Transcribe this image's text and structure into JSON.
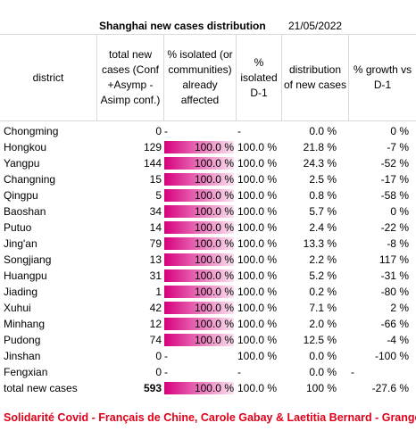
{
  "title": "Shanghai new cases distribution",
  "date": "21/05/2022",
  "columns": {
    "district": "district",
    "total_new": [
      "total new",
      "cases (Conf",
      "+Asymp -",
      "Asimp conf.)"
    ],
    "isolated": [
      "% isolated (or",
      "communities)",
      "already",
      "affected"
    ],
    "isolated_d1": [
      "%",
      "isolated",
      "D-1"
    ],
    "distribution": [
      "distribution",
      "of new cases"
    ],
    "growth": [
      "% growth vs",
      "D-1"
    ]
  },
  "rows": [
    {
      "district": "Chongming",
      "total": "0",
      "isolated": "-",
      "isolated_fill": 0,
      "isolated_d1": "-",
      "distribution": "0.0 %",
      "growth": "0 %",
      "extra": ""
    },
    {
      "district": "Hongkou",
      "total": "129",
      "isolated": "100.0 %",
      "isolated_fill": 1,
      "isolated_d1": "100.0 %",
      "distribution": "21.8 %",
      "growth": "-7 %",
      "extra": ""
    },
    {
      "district": "Yangpu",
      "total": "144",
      "isolated": "100.0 %",
      "isolated_fill": 1,
      "isolated_d1": "100.0 %",
      "distribution": "24.3 %",
      "growth": "-52 %",
      "extra": ""
    },
    {
      "district": "Changning",
      "total": "15",
      "isolated": "100.0 %",
      "isolated_fill": 1,
      "isolated_d1": "100.0 %",
      "distribution": "2.5 %",
      "growth": "-17 %",
      "extra": ""
    },
    {
      "district": "Qingpu",
      "total": "5",
      "isolated": "100.0 %",
      "isolated_fill": 1,
      "isolated_d1": "100.0 %",
      "distribution": "0.8 %",
      "growth": "-58 %",
      "extra": ""
    },
    {
      "district": "Baoshan",
      "total": "34",
      "isolated": "100.0 %",
      "isolated_fill": 1,
      "isolated_d1": "100.0 %",
      "distribution": "5.7 %",
      "growth": "0 %",
      "extra": ""
    },
    {
      "district": "Putuo",
      "total": "14",
      "isolated": "100.0 %",
      "isolated_fill": 1,
      "isolated_d1": "100.0 %",
      "distribution": "2.4 %",
      "growth": "-22 %",
      "extra": ""
    },
    {
      "district": "Jing'an",
      "total": "79",
      "isolated": "100.0 %",
      "isolated_fill": 1,
      "isolated_d1": "100.0 %",
      "distribution": "13.3 %",
      "growth": "-8 %",
      "extra": ""
    },
    {
      "district": "Songjiang",
      "total": "13",
      "isolated": "100.0 %",
      "isolated_fill": 1,
      "isolated_d1": "100.0 %",
      "distribution": "2.2 %",
      "growth": "117 %",
      "extra": ""
    },
    {
      "district": "Huangpu",
      "total": "31",
      "isolated": "100.0 %",
      "isolated_fill": 1,
      "isolated_d1": "100.0 %",
      "distribution": "5.2 %",
      "growth": "-31 %",
      "extra": ""
    },
    {
      "district": "Jiading",
      "total": "1",
      "isolated": "100.0 %",
      "isolated_fill": 1,
      "isolated_d1": "100.0 %",
      "distribution": "0.2 %",
      "growth": "-80 %",
      "extra": ""
    },
    {
      "district": "Xuhui",
      "total": "42",
      "isolated": "100.0 %",
      "isolated_fill": 1,
      "isolated_d1": "100.0 %",
      "distribution": "7.1 %",
      "growth": "2 %",
      "extra": ""
    },
    {
      "district": "Minhang",
      "total": "12",
      "isolated": "100.0 %",
      "isolated_fill": 1,
      "isolated_d1": "100.0 %",
      "distribution": "2.0 %",
      "growth": "-66 %",
      "extra": ""
    },
    {
      "district": "Pudong",
      "total": "74",
      "isolated": "100.0 %",
      "isolated_fill": 1,
      "isolated_d1": "100.0 %",
      "distribution": "12.5 %",
      "growth": "-4 %",
      "extra": ""
    },
    {
      "district": "Jinshan",
      "total": "0",
      "isolated": "-",
      "isolated_fill": 0,
      "isolated_d1": "100.0 %",
      "distribution": "0.0 %",
      "growth": "-100 %",
      "extra": ""
    },
    {
      "district": "Fengxian",
      "total": "0",
      "isolated": "-",
      "isolated_fill": 0,
      "isolated_d1": "-",
      "distribution": "0.0 %",
      "growth": "",
      "extra": "-"
    }
  ],
  "total_row": {
    "district": "total new cases",
    "total": "593",
    "isolated": "100.0 %",
    "isolated_fill": 1,
    "isolated_d1": "100.0 %",
    "distribution": "100 %",
    "growth": "-27.6 %",
    "extra": ""
  },
  "credit": "Solidarité Covid - Français de Chine, Carole Gabay & Laetitia Bernard - Granger",
  "colors": {
    "bar_start": "#d6007e",
    "bar_end": "#fbe3f1",
    "credit": "#e0001a",
    "grid": "#d9d9d9"
  }
}
